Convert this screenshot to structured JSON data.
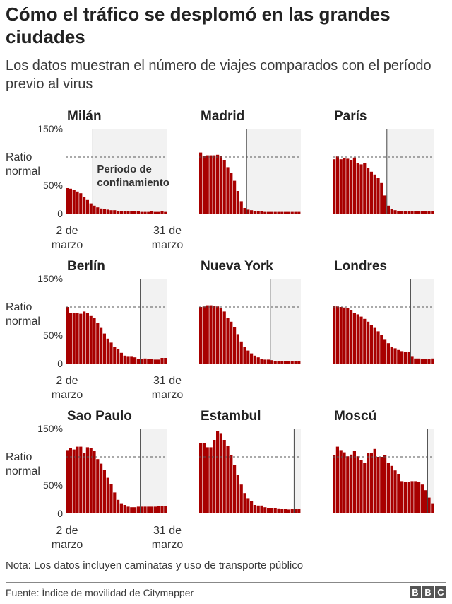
{
  "header": {
    "title": "Cómo el tráfico se desplomó en las grandes ciudades",
    "subtitle": "Los datos muestran el número de viajes comparados con el período previo al virus"
  },
  "labels": {
    "ratio_line1": "Ratio",
    "ratio_line2": "normal",
    "lockdown_line1": "Período de",
    "lockdown_line2": "confinamiento",
    "x_start_line1": "2 de",
    "x_start_line2": "marzo",
    "x_end_line1": "31 de",
    "x_end_line2": "marzo"
  },
  "footer": {
    "note": "Nota: Los datos incluyen caminatas y uso de transporte público",
    "source": "Fuente: Índice de movilidad de Citymapper",
    "logo_letters": [
      "B",
      "B",
      "C"
    ]
  },
  "colors": {
    "bar": "#a80000",
    "bar_edge": "#5a0000",
    "lockdown_shade": "#f2f2f2",
    "normal_line": "#555555"
  },
  "chart_data": [
    {
      "type": "bar",
      "title": "Milán",
      "y_tick_labels": [
        "150%",
        "50%",
        "0"
      ],
      "ylim": [
        0,
        150
      ],
      "normal_value": 100,
      "lockdown_start_day": 8,
      "values": [
        45,
        44,
        42,
        39,
        36,
        30,
        24,
        18,
        14,
        11,
        9,
        8,
        7,
        6,
        6,
        5,
        5,
        4,
        4,
        4,
        4,
        4,
        3,
        3,
        3,
        4,
        3,
        3,
        4,
        3
      ]
    },
    {
      "type": "bar",
      "title": "Madrid",
      "ylim": [
        0,
        150
      ],
      "normal_value": 100,
      "lockdown_start_day": 14,
      "values": [
        108,
        102,
        103,
        103,
        103,
        104,
        102,
        95,
        82,
        72,
        58,
        40,
        22,
        10,
        7,
        6,
        5,
        4,
        4,
        3,
        3,
        3,
        3,
        3,
        3,
        3,
        3,
        3,
        3,
        3
      ]
    },
    {
      "type": "bar",
      "title": "París",
      "ylim": [
        0,
        150
      ],
      "normal_value": 100,
      "lockdown_start_day": 16,
      "values": [
        96,
        101,
        96,
        98,
        97,
        95,
        99,
        89,
        87,
        90,
        81,
        74,
        69,
        63,
        54,
        32,
        14,
        8,
        6,
        5,
        5,
        5,
        5,
        5,
        5,
        5,
        5,
        5,
        5,
        5
      ]
    },
    {
      "type": "bar",
      "title": "Berlín",
      "y_tick_labels": [
        "150%",
        "50%",
        "0"
      ],
      "ylim": [
        0,
        150
      ],
      "normal_value": 100,
      "lockdown_start_day": 22,
      "values": [
        100,
        90,
        89,
        89,
        88,
        92,
        90,
        84,
        80,
        72,
        63,
        53,
        44,
        37,
        30,
        25,
        19,
        14,
        12,
        12,
        11,
        8,
        8,
        9,
        8,
        8,
        7,
        7,
        10,
        10
      ]
    },
    {
      "type": "bar",
      "title": "Nueva York",
      "ylim": [
        0,
        150
      ],
      "normal_value": 100,
      "lockdown_start_day": 21,
      "values": [
        100,
        101,
        103,
        103,
        102,
        101,
        98,
        92,
        81,
        74,
        64,
        52,
        39,
        30,
        23,
        18,
        14,
        11,
        8,
        7,
        7,
        6,
        5,
        5,
        4,
        4,
        4,
        4,
        4,
        5
      ]
    },
    {
      "type": "bar",
      "title": "Londres",
      "ylim": [
        0,
        150
      ],
      "normal_value": 100,
      "lockdown_start_day": 23,
      "values": [
        102,
        101,
        100,
        99,
        98,
        94,
        90,
        87,
        83,
        79,
        74,
        68,
        63,
        57,
        50,
        42,
        36,
        30,
        27,
        24,
        22,
        20,
        20,
        12,
        9,
        9,
        8,
        8,
        8,
        9
      ]
    },
    {
      "type": "bar",
      "title": "Sao Paulo",
      "y_tick_labels": [
        "150%",
        "50%",
        "0"
      ],
      "ylim": [
        0,
        150
      ],
      "normal_value": 100,
      "lockdown_start_day": 22,
      "values": [
        112,
        115,
        113,
        118,
        118,
        107,
        117,
        116,
        110,
        96,
        88,
        77,
        63,
        52,
        37,
        24,
        18,
        15,
        12,
        11,
        11,
        12,
        12,
        12,
        12,
        12,
        12,
        13,
        13,
        13
      ]
    },
    {
      "type": "bar",
      "title": "Estambul",
      "ylim": [
        0,
        150
      ],
      "normal_value": 100,
      "lockdown_start_day": 28,
      "values": [
        124,
        125,
        117,
        117,
        130,
        145,
        142,
        130,
        120,
        103,
        86,
        68,
        51,
        36,
        27,
        22,
        15,
        14,
        14,
        11,
        10,
        10,
        10,
        9,
        8,
        8,
        7,
        8,
        8,
        8
      ]
    },
    {
      "type": "bar",
      "title": "Moscú",
      "ylim": [
        0,
        150
      ],
      "normal_value": 100,
      "lockdown_start_day": 28,
      "values": [
        103,
        118,
        112,
        108,
        101,
        104,
        110,
        101,
        94,
        90,
        107,
        107,
        114,
        100,
        100,
        103,
        89,
        84,
        76,
        70,
        57,
        55,
        55,
        57,
        57,
        56,
        51,
        41,
        28,
        18
      ]
    }
  ]
}
